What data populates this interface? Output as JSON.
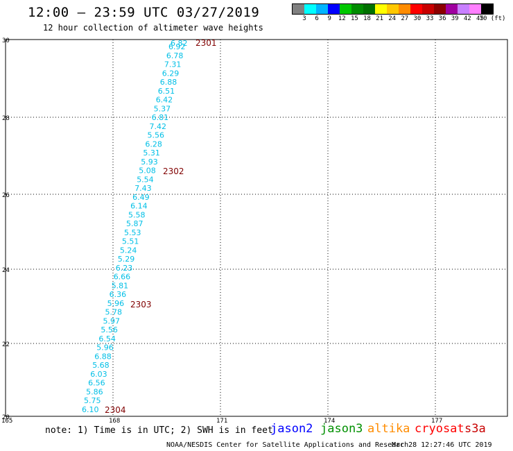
{
  "header": {
    "title": "12:00 — 23:59 UTC 03/27/2019",
    "subtitle": "12 hour collection of altimeter wave heights"
  },
  "legend": {
    "colors": [
      "#808080",
      "#00ffff",
      "#00b4ff",
      "#0000ff",
      "#00c800",
      "#008c00",
      "#007000",
      "#ffff00",
      "#ffc800",
      "#ff8c00",
      "#ff0000",
      "#c80000",
      "#8c0000",
      "#a000a0",
      "#c880ff",
      "#ff80ff",
      "#000000"
    ],
    "labels": [
      "3",
      "6",
      "9",
      "12",
      "15",
      "18",
      "21",
      "24",
      "27",
      "30",
      "33",
      "36",
      "39",
      "42",
      "45",
      "70 (ft)"
    ]
  },
  "map": {
    "lat_labels": [
      "30",
      "28",
      "26",
      "24",
      "22",
      "20"
    ],
    "lon_labels": [
      "165",
      "168",
      "171",
      "174",
      "177"
    ],
    "track_color": "#00bfe6",
    "time_label_color": "#800000",
    "swh_values": [
      "6.82",
      "6.92",
      "6.78",
      "7.31",
      "6.29",
      "6.88",
      "6.51",
      "6.42",
      "5.37",
      "6.81",
      "7.42",
      "5.56",
      "6.28",
      "5.31",
      "5.93",
      "5.08",
      "5.54",
      "7.43",
      "6.49",
      "6.14",
      "5.58",
      "5.87",
      "5.53",
      "5.51",
      "5.24",
      "5.29",
      "6.23",
      "6.66",
      "5.81",
      "6.36",
      "5.96",
      "5.78",
      "5.97",
      "5.56",
      "6.54",
      "5.96",
      "6.88",
      "5.68",
      "6.03",
      "6.56",
      "5.86",
      "5.75",
      "6.10"
    ],
    "time_labels": [
      "2301",
      "2302",
      "2303",
      "2304"
    ]
  },
  "footer": {
    "note": "note: 1) Time is in UTC; 2) SWH is in feet",
    "satellites": [
      {
        "name": "jason2",
        "color": "#0000ff"
      },
      {
        "name": "jason3",
        "color": "#009000"
      },
      {
        "name": "altika",
        "color": "#ff8c00"
      },
      {
        "name": "cryosat",
        "color": "#ff0000"
      },
      {
        "name": "s3a",
        "color": "#c80000"
      }
    ],
    "credit": "NOAA/NESDIS Center for Satellite Applications and Research",
    "timestamp": "Mar 28 12:27:46 UTC 2019"
  }
}
